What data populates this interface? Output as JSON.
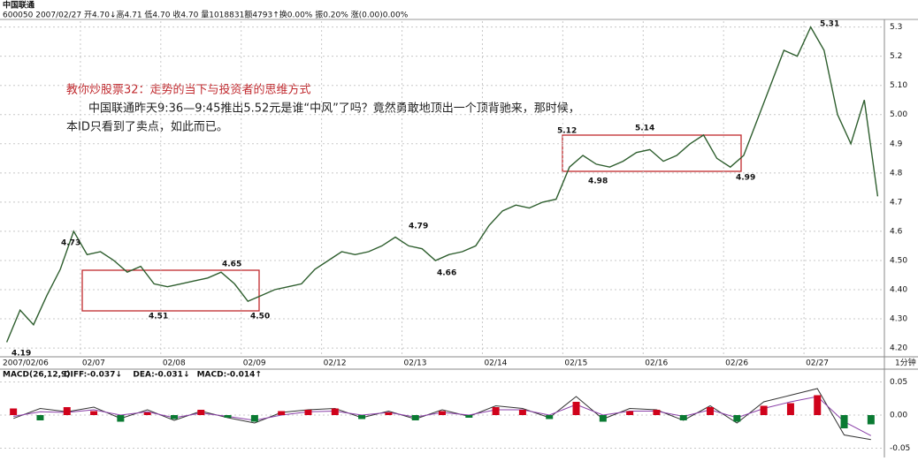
{
  "header": {
    "title": "中国联通",
    "quote": "600050 2007/02/27 开4.70↓高4.71 低4.70 收4.70 量1018831额4793↑换0.00% 振0.20% 涨(0.00)0.00%"
  },
  "note": {
    "title": "教你炒股票32：走势的当下与投资者的思维方式",
    "lines": [
      "中国联通昨天9:36—9:45推出5.52元是谁“中风”了吗？竟然勇敢地顶出一个顶背驰来，那时候，",
      "本ID只看到了卖点，如此而已。"
    ]
  },
  "chart_data": [
    {
      "type": "line",
      "color": "#2e5e2e",
      "grid": true,
      "period": "1分钟",
      "categories": [
        "2007/02/06",
        null,
        null,
        null,
        null,
        null,
        "02/07",
        null,
        null,
        null,
        null,
        null,
        "02/08",
        null,
        null,
        null,
        null,
        null,
        "02/09",
        null,
        null,
        null,
        null,
        null,
        "02/12",
        null,
        null,
        null,
        null,
        null,
        "02/13",
        null,
        null,
        null,
        null,
        null,
        "02/14",
        null,
        null,
        null,
        null,
        null,
        "02/15",
        null,
        null,
        null,
        null,
        null,
        "02/16",
        null,
        null,
        null,
        null,
        null,
        "02/26",
        null,
        null,
        null,
        null,
        null,
        "02/27",
        null,
        null,
        null,
        null,
        null
      ],
      "values": [
        4.22,
        4.33,
        4.28,
        4.38,
        4.47,
        4.6,
        4.52,
        4.53,
        4.5,
        4.46,
        4.48,
        4.42,
        4.41,
        4.42,
        4.43,
        4.44,
        4.46,
        4.42,
        4.36,
        4.38,
        4.4,
        4.41,
        4.42,
        4.47,
        4.5,
        4.53,
        4.52,
        4.53,
        4.55,
        4.58,
        4.55,
        4.54,
        4.5,
        4.52,
        4.53,
        4.55,
        4.62,
        4.67,
        4.69,
        4.68,
        4.7,
        4.71,
        4.82,
        4.86,
        4.83,
        4.82,
        4.84,
        4.87,
        4.88,
        4.84,
        4.86,
        4.9,
        4.93,
        4.85,
        4.82,
        4.86,
        4.98,
        5.1,
        5.22,
        5.2,
        5.3,
        5.22,
        5.0,
        4.9,
        5.05,
        4.72
      ],
      "ylim": [
        4.17,
        5.32
      ],
      "yticks": [
        {
          "value": 4.2,
          "label": "4.20"
        },
        {
          "value": 4.3,
          "label": "4.30"
        },
        {
          "value": 4.4,
          "label": "4.40"
        },
        {
          "value": 4.5,
          "label": "4.50"
        },
        4.6,
        4.7,
        4.8,
        4.9,
        {
          "value": 5.0,
          "label": "5.00"
        },
        {
          "value": 5.1,
          "label": "5.10"
        },
        5.2,
        5.3
      ],
      "annotations": [
        {
          "text": "4.73",
          "color": "#c0282d"
        },
        {
          "text": "4.19",
          "color": "#111111"
        },
        {
          "text": "4.65",
          "color": "#c0282d"
        },
        {
          "text": "4.51",
          "color": "#111111"
        },
        {
          "text": "4.50",
          "color": "#111111"
        },
        {
          "text": "4.79",
          "color": "#c0282d"
        },
        {
          "text": "4.66",
          "color": "#111111"
        },
        {
          "text": "5.12",
          "color": "#c0282d"
        },
        {
          "text": "5.14",
          "color": "#c0282d"
        },
        {
          "text": "4.98",
          "color": "#111111"
        },
        {
          "text": "4.99",
          "color": "#111111"
        },
        {
          "text": "5.31",
          "color": "#111111"
        }
      ]
    },
    {
      "type": "macd",
      "title": "MACD(26,12,9)",
      "ylim": [
        -0.06,
        0.06
      ],
      "yticks": [
        0.05,
        {
          "value": 0,
          "label": "0.00"
        },
        -0.05
      ],
      "series": [
        {
          "name": "DIFF:-0.037↓",
          "color": "#333333",
          "style": "line",
          "values": [
            -0.005,
            0.01,
            0.005,
            0.012,
            -0.005,
            0.008,
            -0.008,
            0.006,
            -0.004,
            -0.012,
            0.004,
            0.008,
            0.01,
            -0.004,
            0.006,
            -0.006,
            0.008,
            -0.002,
            0.014,
            0.01,
            -0.004,
            0.028,
            -0.006,
            0.01,
            0.008,
            -0.008,
            0.014,
            -0.012,
            0.02,
            0.03,
            0.04,
            -0.03,
            -0.037
          ]
        },
        {
          "name": "DEA:-0.031↓",
          "color": "#8a3fa8",
          "style": "line",
          "values": [
            -0.002,
            0.005,
            0.004,
            0.008,
            0.0,
            0.005,
            -0.004,
            0.003,
            -0.002,
            -0.008,
            0.0,
            0.005,
            0.006,
            0.0,
            0.004,
            -0.003,
            0.004,
            0.0,
            0.008,
            0.008,
            0.0,
            0.016,
            0.0,
            0.006,
            0.006,
            -0.002,
            0.008,
            -0.004,
            0.01,
            0.02,
            0.028,
            -0.01,
            -0.031
          ]
        },
        {
          "name": "MACD:-0.014↑",
          "color": "#d0021b",
          "negative_color": "#0a7a32",
          "style": "bar",
          "values": [
            0.01,
            -0.008,
            0.012,
            0.006,
            -0.01,
            0.004,
            -0.006,
            0.008,
            -0.004,
            -0.01,
            0.006,
            0.008,
            0.01,
            -0.006,
            0.004,
            -0.008,
            0.006,
            -0.004,
            0.012,
            0.008,
            -0.006,
            0.02,
            -0.01,
            0.006,
            0.008,
            -0.008,
            0.012,
            -0.01,
            0.014,
            0.018,
            0.03,
            -0.02,
            -0.014
          ]
        }
      ]
    }
  ]
}
